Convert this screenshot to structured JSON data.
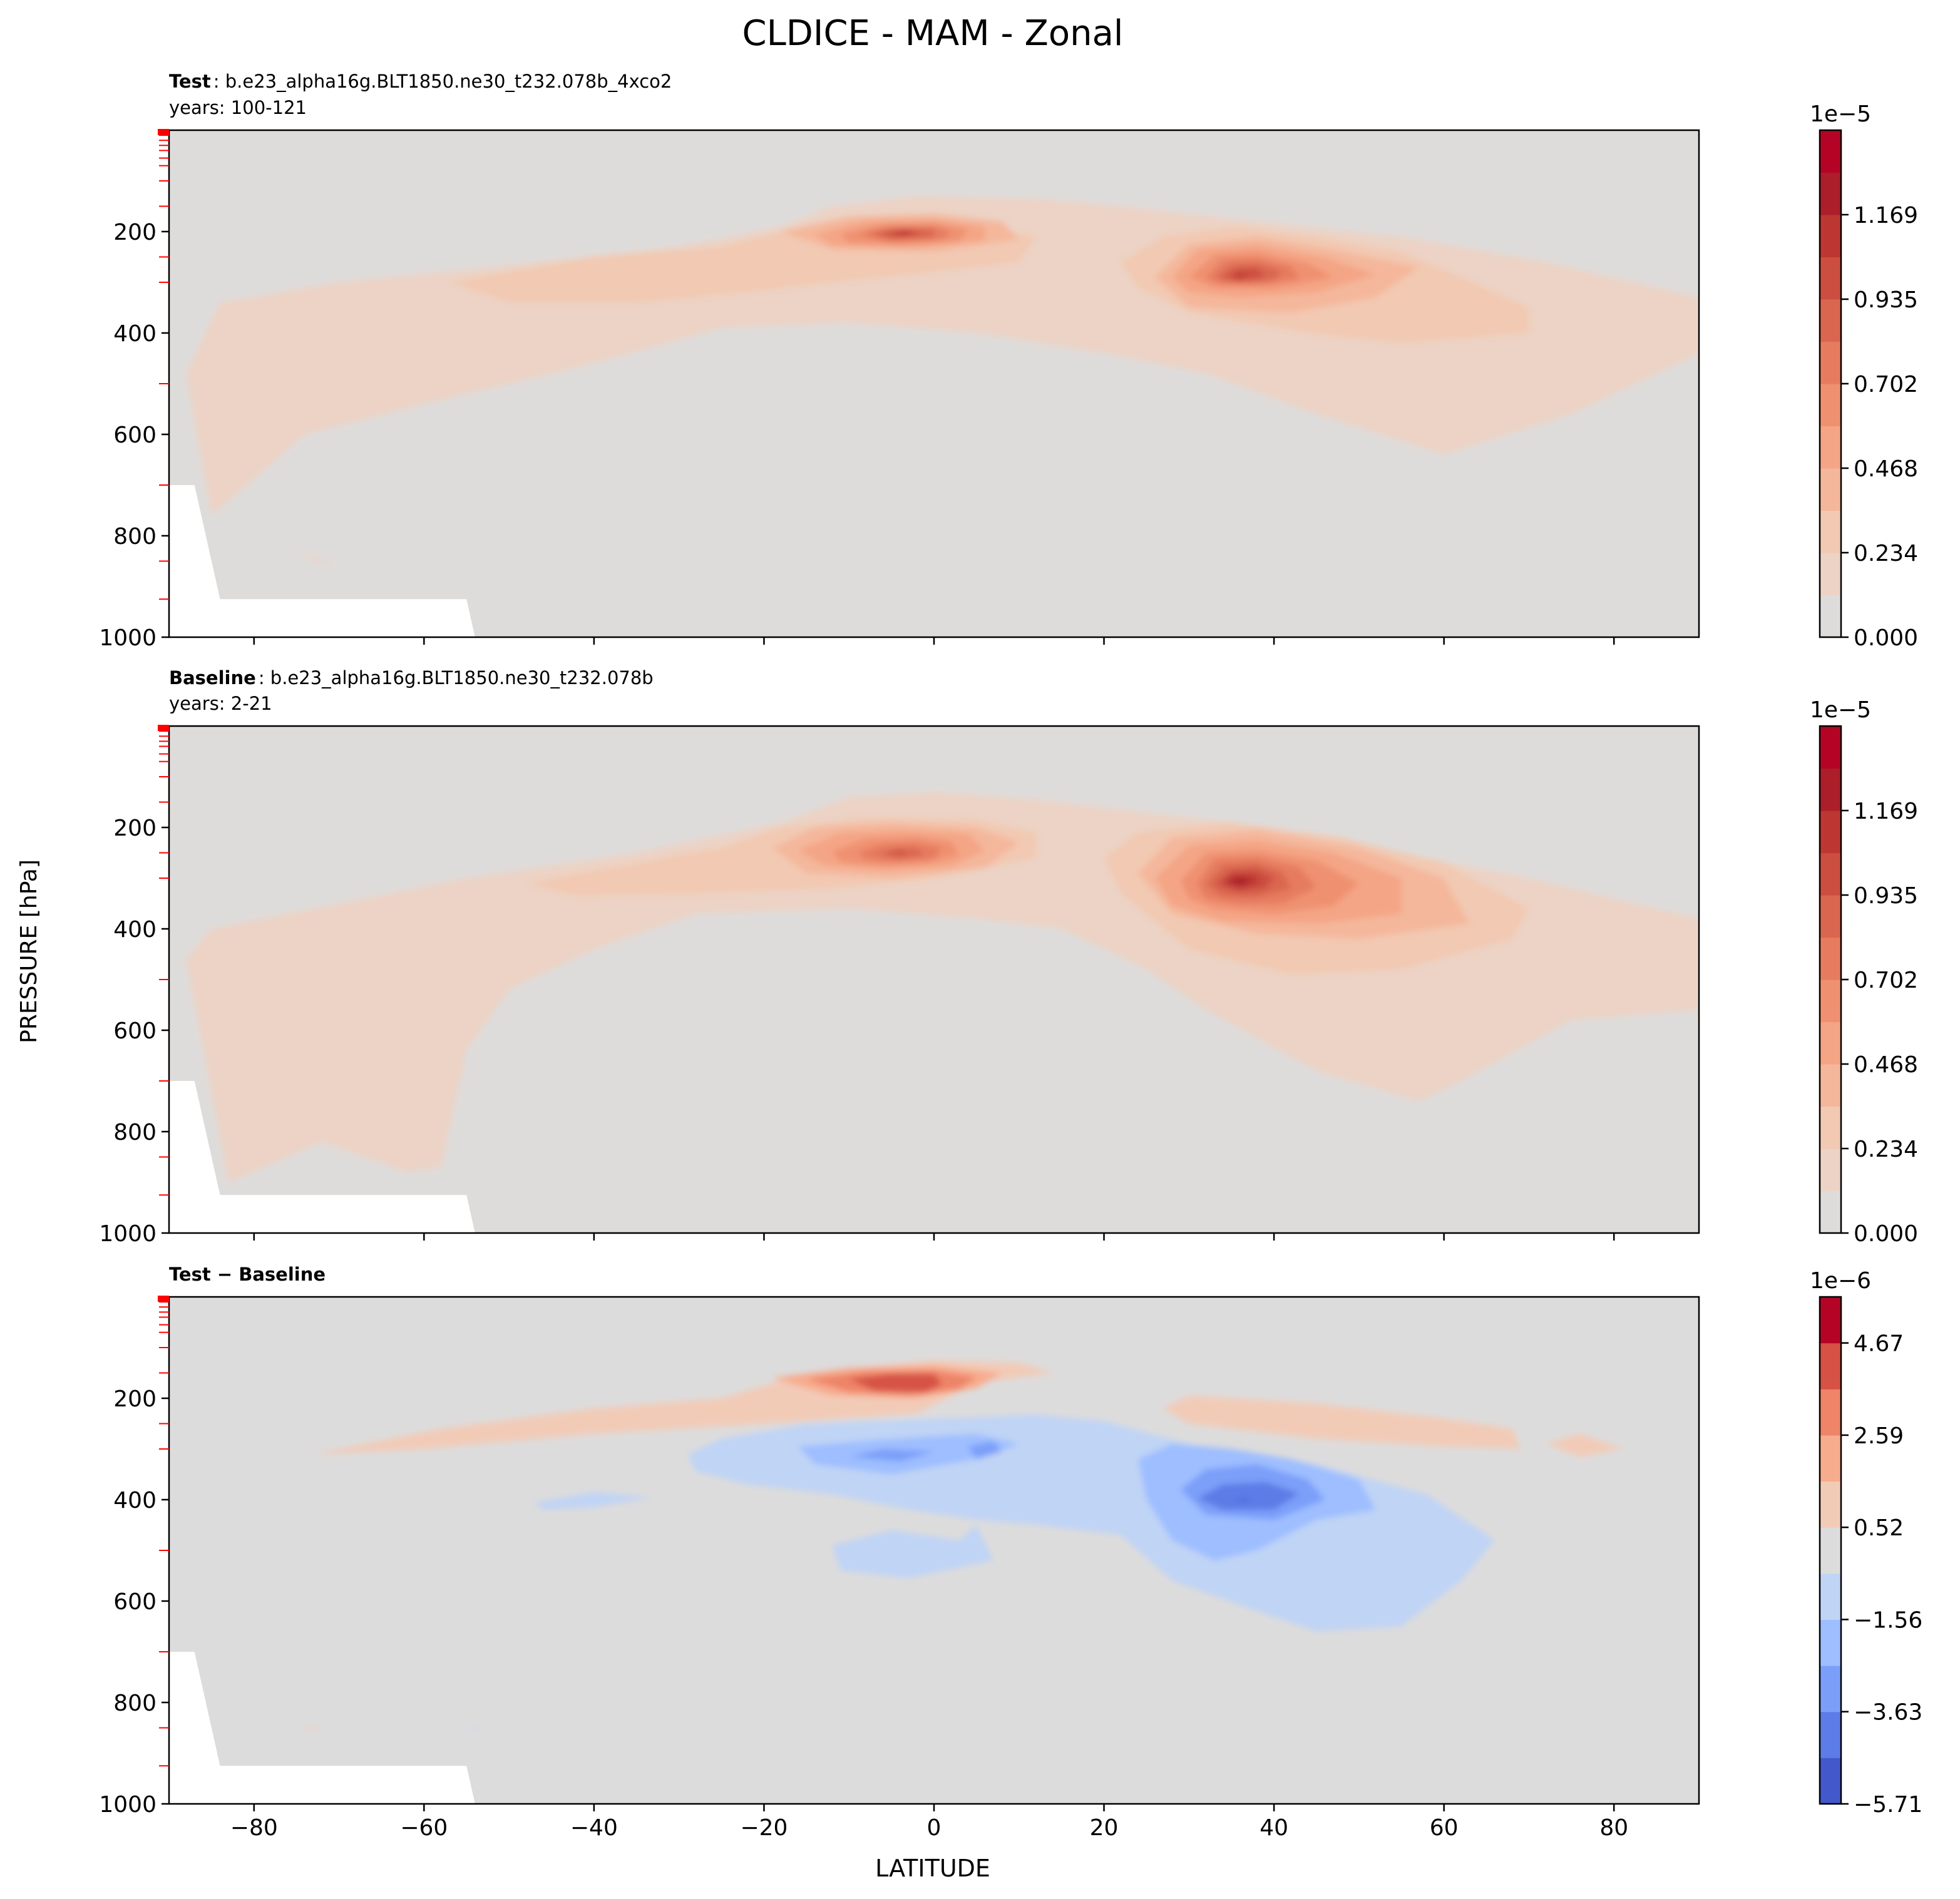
{
  "figure": {
    "title": "CLDICE - MAM - Zonal",
    "xlabel": "LATITUDE",
    "ylabel": "PRESSURE [hPa]"
  },
  "chart_data": [
    {
      "type": "contour",
      "panel": "test",
      "subtitle_bold": "Test",
      "subtitle_rest": ": b.e23_alpha16g.BLT1850.ne30_t232.078b_4xco2",
      "subtitle_line2": "years: 100-121",
      "xlim": [
        -90,
        90
      ],
      "ylim": [
        1000,
        0
      ],
      "x_ticks": [
        -80,
        -60,
        -40,
        -20,
        0,
        20,
        40,
        60,
        80
      ],
      "y_ticks": [
        200,
        400,
        600,
        800,
        1000
      ],
      "colorbar": {
        "exponent": "1e−5",
        "tick_labels": [
          "0.000",
          "0.234",
          "0.468",
          "0.702",
          "0.935",
          "1.169"
        ],
        "tick_levels": [
          0,
          2,
          4,
          6,
          8,
          10
        ],
        "n_levels": 12,
        "colors": [
          "#dedcdb",
          "#ecd3c5",
          "#f2c9b2",
          "#f4b79b",
          "#f4a585",
          "#ef9171",
          "#e67c5f",
          "#da664f",
          "#cc4e40",
          "#bd3732",
          "#ab1e2a",
          "#b40426"
        ]
      },
      "features": [
        {
          "name": "tropical-max",
          "lat": -5,
          "p": 200,
          "peak_level": 11
        },
        {
          "name": "nh-midlat-max",
          "lat": 35,
          "p": 300,
          "peak_level": 9
        }
      ],
      "missing_region": [
        [
          -90,
          1000
        ],
        [
          -90,
          700
        ],
        [
          -87,
          700
        ],
        [
          -84,
          925
        ],
        [
          -55,
          925
        ],
        [
          -54,
          1000
        ]
      ]
    },
    {
      "type": "contour",
      "panel": "baseline",
      "subtitle_bold": "Baseline",
      "subtitle_rest": ": b.e23_alpha16g.BLT1850.ne30_t232.078b",
      "subtitle_line2": "years: 2-21",
      "xlim": [
        -90,
        90
      ],
      "ylim": [
        1000,
        0
      ],
      "x_ticks": [
        -80,
        -60,
        -40,
        -20,
        0,
        20,
        40,
        60,
        80
      ],
      "y_ticks": [
        200,
        400,
        600,
        800,
        1000
      ],
      "colorbar": {
        "exponent": "1e−5",
        "tick_labels": [
          "0.000",
          "0.234",
          "0.468",
          "0.702",
          "0.935",
          "1.169"
        ],
        "tick_levels": [
          0,
          2,
          4,
          6,
          8,
          10
        ],
        "n_levels": 12,
        "colors": [
          "#dedcdb",
          "#ecd3c5",
          "#f2c9b2",
          "#f4b79b",
          "#f4a585",
          "#ef9171",
          "#e67c5f",
          "#da664f",
          "#cc4e40",
          "#bd3732",
          "#ab1e2a",
          "#b40426"
        ]
      },
      "features": [
        {
          "name": "tropical-max",
          "lat": -5,
          "p": 250,
          "peak_level": 8
        },
        {
          "name": "nh-midlat-max",
          "lat": 35,
          "p": 310,
          "peak_level": 10
        }
      ],
      "missing_region": [
        [
          -90,
          1000
        ],
        [
          -90,
          700
        ],
        [
          -87,
          700
        ],
        [
          -84,
          925
        ],
        [
          -55,
          925
        ],
        [
          -54,
          1000
        ]
      ]
    },
    {
      "type": "contour",
      "panel": "difference",
      "subtitle_bold": "Test − Baseline",
      "subtitle_rest": "",
      "subtitle_line2": "",
      "xlim": [
        -90,
        90
      ],
      "ylim": [
        1000,
        0
      ],
      "x_ticks": [
        -80,
        -60,
        -40,
        -20,
        0,
        20,
        40,
        60,
        80
      ],
      "y_ticks": [
        200,
        400,
        600,
        800,
        1000
      ],
      "colorbar": {
        "exponent": "1e−6",
        "tick_labels": [
          "−5.71",
          "−3.63",
          "−1.56",
          "0.52",
          "2.59",
          "4.67"
        ],
        "tick_levels": [
          0,
          2,
          4,
          6,
          8,
          10
        ],
        "n_levels": 11,
        "colors": [
          "#4358cb",
          "#5d7ce6",
          "#7b9ff9",
          "#9ebeff",
          "#c0d4f5",
          "#dddcdc",
          "#f2cbb7",
          "#f7ac8e",
          "#ee8468",
          "#d65244",
          "#b40426"
        ]
      },
      "features": [
        {
          "name": "tropical-positive",
          "lat": -5,
          "p": 170,
          "sign": "+"
        },
        {
          "name": "tropical-negative",
          "lat": -5,
          "p": 310,
          "sign": "-"
        },
        {
          "name": "nh-midlat-negative",
          "lat": 37,
          "p": 400,
          "sign": "-"
        }
      ],
      "missing_region": [
        [
          -90,
          1000
        ],
        [
          -90,
          700
        ],
        [
          -87,
          700
        ],
        [
          -84,
          925
        ],
        [
          -55,
          925
        ],
        [
          -54,
          1000
        ]
      ]
    }
  ]
}
